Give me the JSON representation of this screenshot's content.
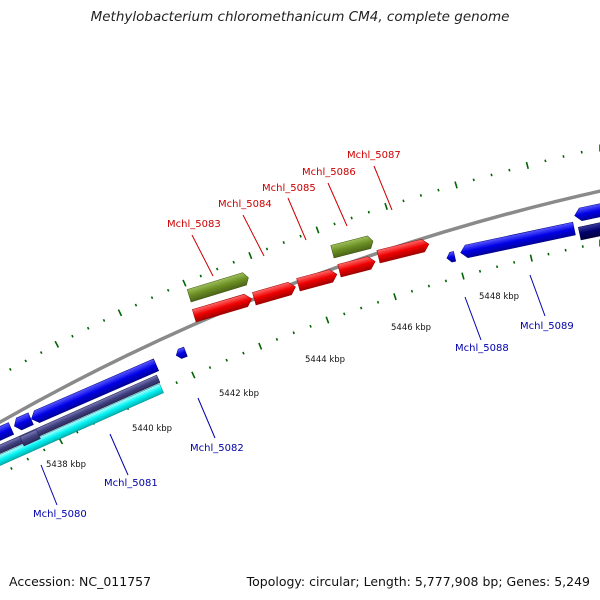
{
  "title": "Methylobacterium chloromethanicum CM4, complete genome",
  "footer": {
    "accession": "Accession: NC_011757",
    "summary": "Topology: circular; Length: 5,777,908 bp; Genes: 5,249"
  },
  "colors": {
    "forward": "#e60000",
    "forward_rna": "#6b8e23",
    "reverse": "#0000dd",
    "reverse_dark": "#404080",
    "reverse_navy": "#00006b",
    "reverse_cyan": "#00ffff",
    "label_forward": "#cc0000",
    "label_reverse": "#0000aa",
    "tick": "#006400",
    "backbone": "#888888"
  },
  "kbp_labels": [
    "5438 kbp",
    "5440 kbp",
    "5442 kbp",
    "5444 kbp",
    "5446 kbp",
    "5448 kbp"
  ],
  "forward_genes": [
    "Mchl_5083",
    "Mchl_5084",
    "Mchl_5085",
    "Mchl_5086",
    "Mchl_5087"
  ],
  "reverse_genes": [
    "Mchl_5080",
    "Mchl_5081",
    "Mchl_5082",
    "Mchl_5088",
    "Mchl_5089"
  ]
}
